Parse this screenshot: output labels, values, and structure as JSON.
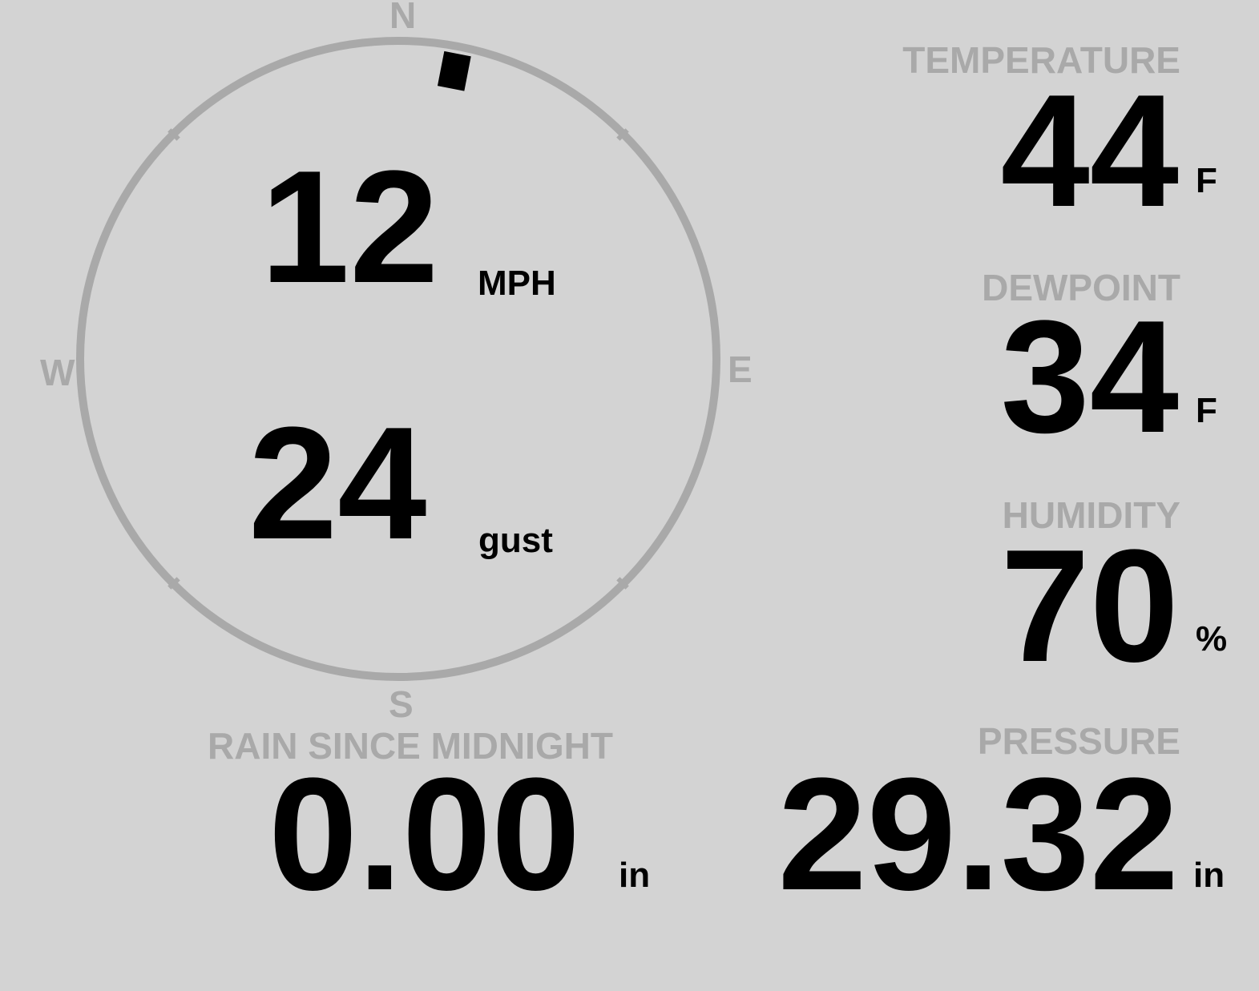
{
  "wind": {
    "direction_deg": 11,
    "speed": "12",
    "speed_unit": "MPH",
    "gust": "24",
    "gust_unit": "gust",
    "cardinals": {
      "n": "N",
      "e": "E",
      "s": "S",
      "w": "W"
    }
  },
  "temperature": {
    "label": "TEMPERATURE",
    "value": "44",
    "unit": "F"
  },
  "dewpoint": {
    "label": "DEWPOINT",
    "value": "34",
    "unit": "F"
  },
  "humidity": {
    "label": "HUMIDITY",
    "value": "70",
    "unit": "%"
  },
  "rain": {
    "label": "RAIN SINCE MIDNIGHT",
    "value": "0.00",
    "unit": "in"
  },
  "pressure": {
    "label": "PRESSURE",
    "value": "29.32",
    "unit": "in"
  },
  "colors": {
    "background": "#d3d3d3",
    "ring": "#a9a9a9",
    "label": "#a9a9a9",
    "value": "#000000"
  }
}
